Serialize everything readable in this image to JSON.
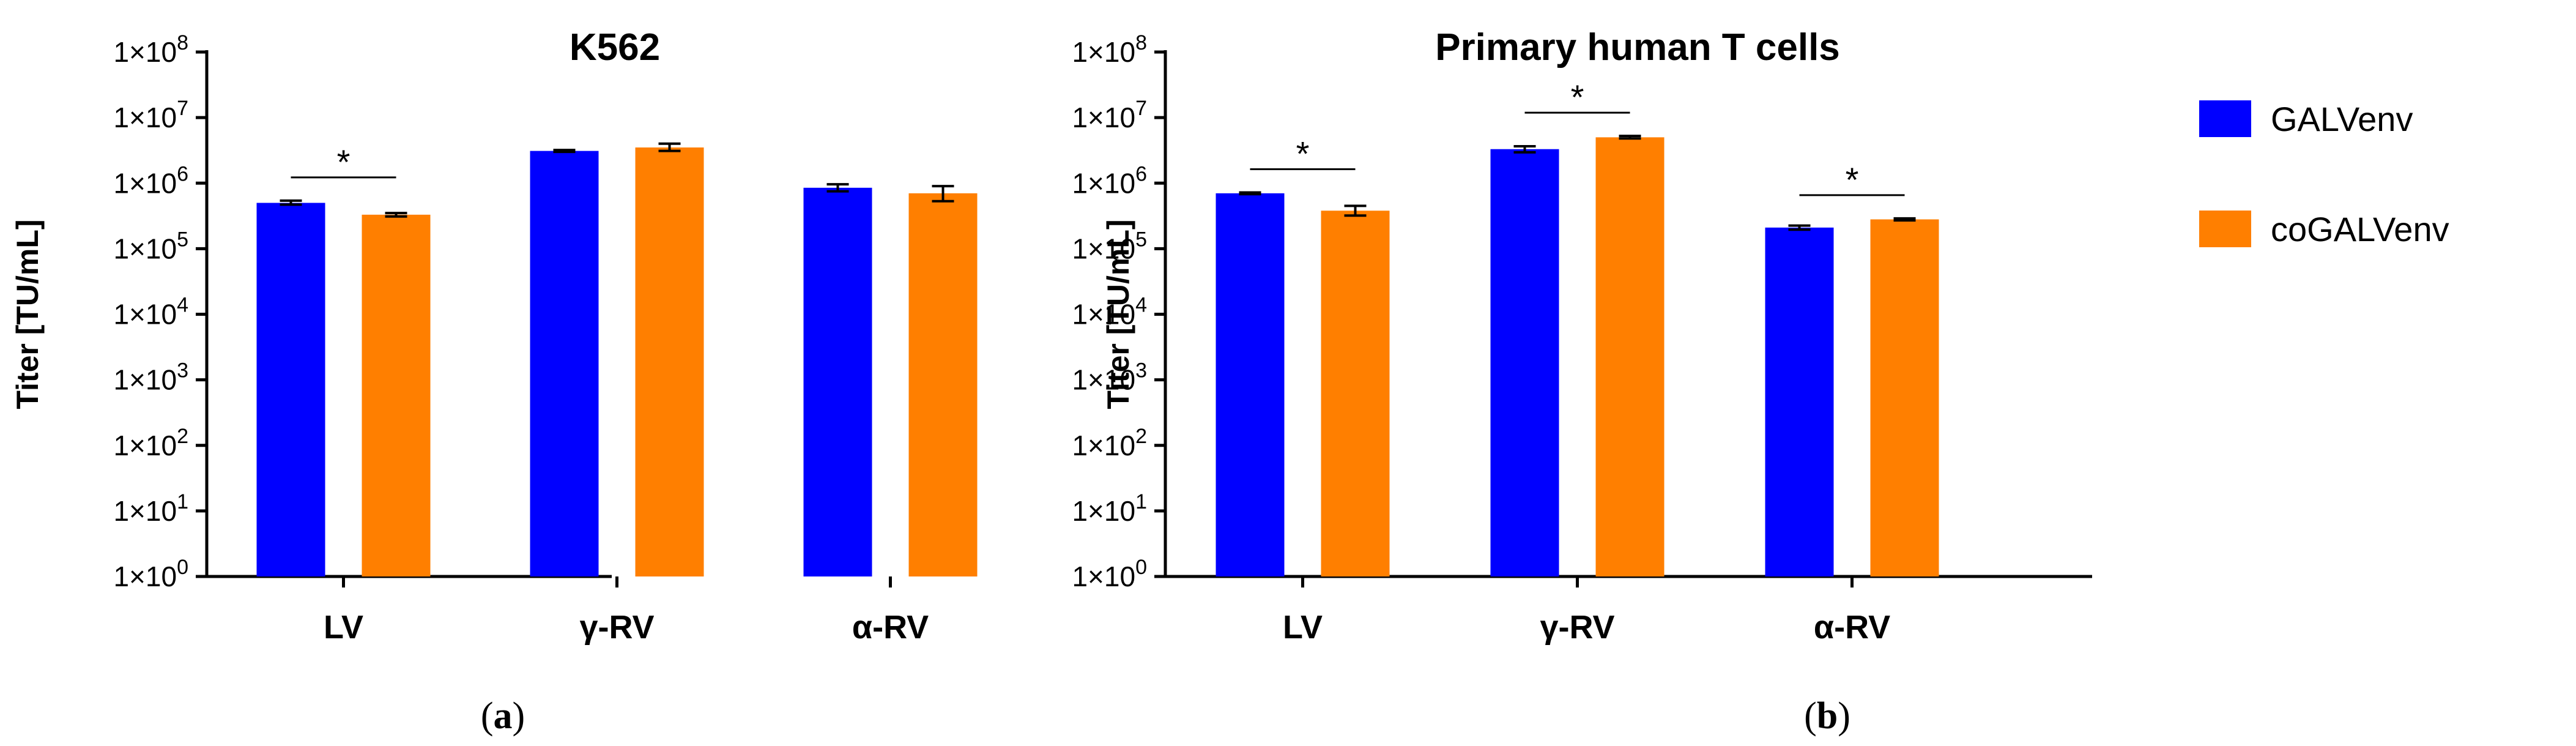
{
  "chart_data": [
    {
      "type": "bar",
      "title": "K562",
      "ylabel": "Titer [TU/mL]",
      "xlabel": "",
      "yscale": "log",
      "ylim": [
        1,
        100000000
      ],
      "y_ticks": [
        {
          "value": 1,
          "label": "1×10",
          "exp": "0"
        },
        {
          "value": 10,
          "label": "1×10",
          "exp": "1"
        },
        {
          "value": 100,
          "label": "1×10",
          "exp": "2"
        },
        {
          "value": 1000,
          "label": "1×10",
          "exp": "3"
        },
        {
          "value": 10000,
          "label": "1×10",
          "exp": "4"
        },
        {
          "value": 100000,
          "label": "1×10",
          "exp": "5"
        },
        {
          "value": 1000000,
          "label": "1×10",
          "exp": "6"
        },
        {
          "value": 10000000,
          "label": "1×10",
          "exp": "7"
        },
        {
          "value": 100000000,
          "label": "1×10",
          "exp": "8"
        }
      ],
      "categories": [
        "LV",
        "γ-RV",
        "α-RV"
      ],
      "series": [
        {
          "name": "GALVenv",
          "color": "#0000ff",
          "values": [
            500000,
            3100000,
            850000
          ],
          "err_low": [
            470000,
            3000000,
            750000
          ],
          "err_high": [
            540000,
            3200000,
            960000
          ]
        },
        {
          "name": "coGALVenv",
          "color": "#ff7f00",
          "values": [
            330000,
            3500000,
            700000
          ],
          "err_low": [
            310000,
            3100000,
            530000
          ],
          "err_high": [
            350000,
            4000000,
            900000
          ]
        }
      ],
      "significance": [
        {
          "category": "LV",
          "label": "*"
        }
      ],
      "panel_label": {
        "open": "(",
        "letter": "a",
        "close": ")"
      }
    },
    {
      "type": "bar",
      "title": "Primary human T cells",
      "ylabel": "Titer [TU/mL]",
      "xlabel": "",
      "yscale": "log",
      "ylim": [
        1,
        100000000
      ],
      "y_ticks": [
        {
          "value": 1,
          "label": "1×10",
          "exp": "0"
        },
        {
          "value": 10,
          "label": "1×10",
          "exp": "1"
        },
        {
          "value": 100,
          "label": "1×10",
          "exp": "2"
        },
        {
          "value": 1000,
          "label": "1×10",
          "exp": "3"
        },
        {
          "value": 10000,
          "label": "1×10",
          "exp": "4"
        },
        {
          "value": 100000,
          "label": "1×10",
          "exp": "5"
        },
        {
          "value": 1000000,
          "label": "1×10",
          "exp": "6"
        },
        {
          "value": 10000000,
          "label": "1×10",
          "exp": "7"
        },
        {
          "value": 100000000,
          "label": "1×10",
          "exp": "8"
        }
      ],
      "categories": [
        "LV",
        "γ-RV",
        "α-RV"
      ],
      "series": [
        {
          "name": "GALVenv",
          "color": "#0000ff",
          "values": [
            700000,
            3300000,
            210000
          ],
          "err_low": [
            680000,
            2950000,
            195000
          ],
          "err_high": [
            720000,
            3650000,
            225000
          ]
        },
        {
          "name": "coGALVenv",
          "color": "#ff7f00",
          "values": [
            380000,
            5000000,
            280000
          ],
          "err_low": [
            320000,
            4800000,
            270000
          ],
          "err_high": [
            450000,
            5250000,
            290000
          ]
        }
      ],
      "significance": [
        {
          "category": "LV",
          "label": "*"
        },
        {
          "category": "γ-RV",
          "label": "*"
        },
        {
          "category": "α-RV",
          "label": "*"
        }
      ],
      "panel_label": {
        "open": "(",
        "letter": "b",
        "close": ")"
      }
    }
  ],
  "legend": {
    "placement": "right",
    "items": [
      {
        "name": "GALVenv",
        "color": "#0000ff"
      },
      {
        "name": "coGALVenv",
        "color": "#ff7f00"
      }
    ]
  }
}
